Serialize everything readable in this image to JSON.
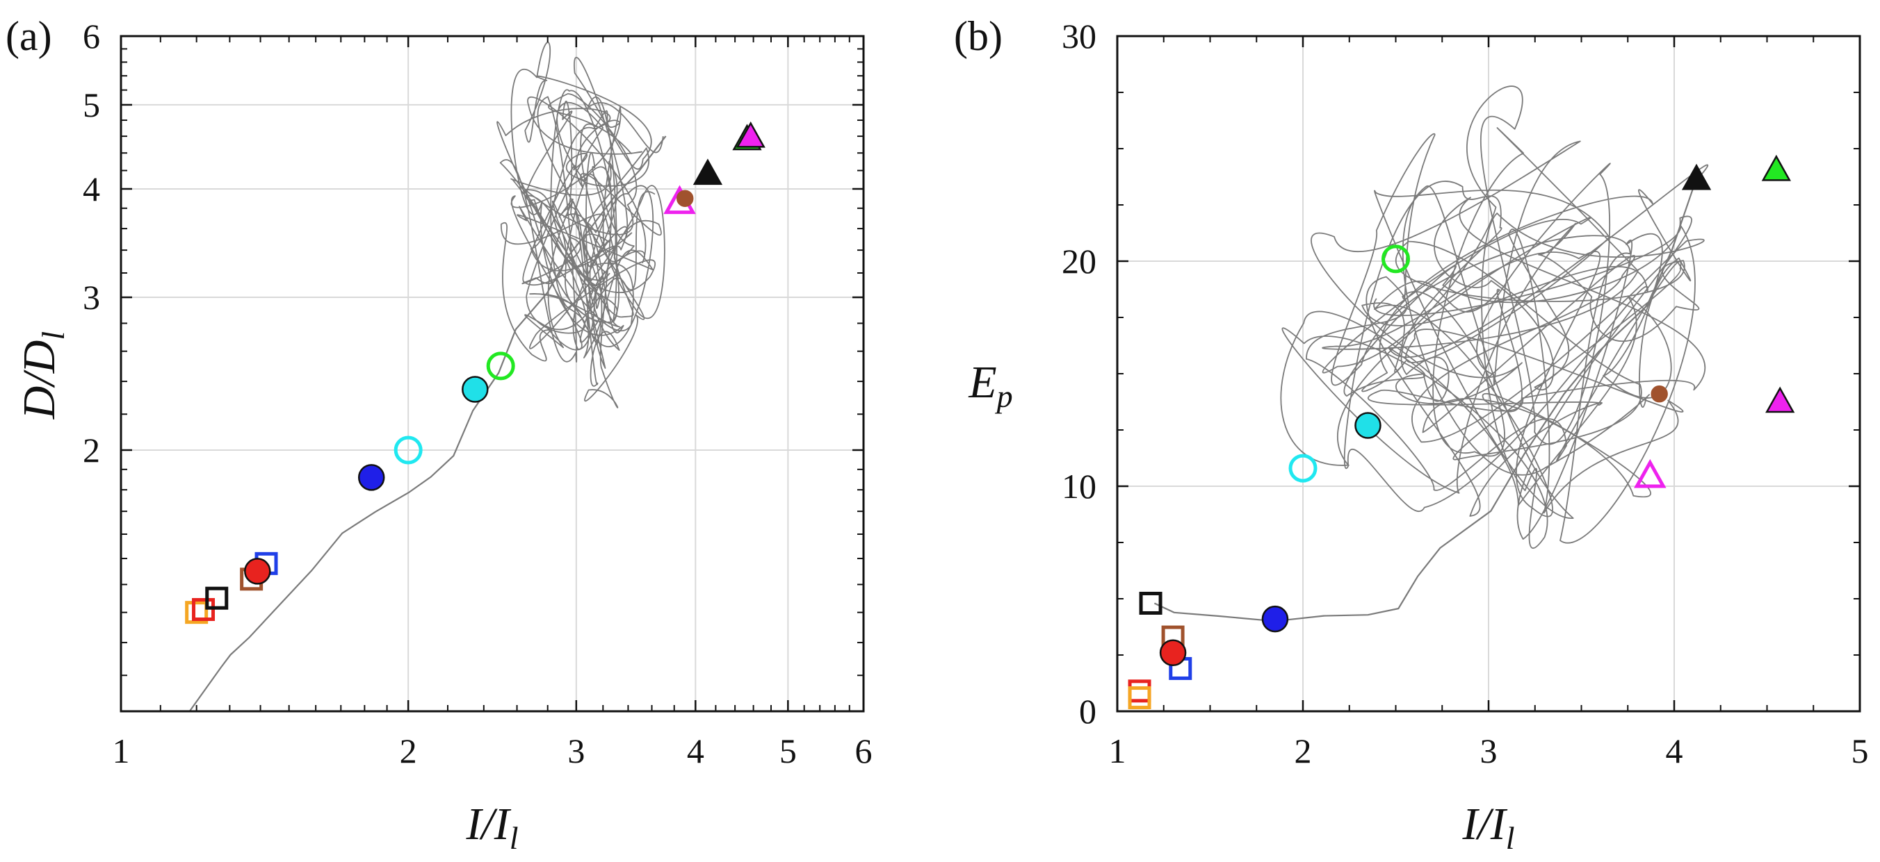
{
  "chart_data": [
    {
      "panel_label": "(a)",
      "type": "scatter",
      "x_scale": "log",
      "y_scale": "log",
      "xlim": [
        1,
        6
      ],
      "ylim": [
        1,
        6
      ],
      "xticks": [
        1,
        2,
        3,
        4,
        5,
        6
      ],
      "yticks": [
        2,
        3,
        4,
        5,
        6
      ],
      "xtick_labels": [
        "1",
        "2",
        "3",
        "4",
        "5",
        "6"
      ],
      "ytick_labels": [
        "2",
        "3",
        "4",
        "5",
        "6"
      ],
      "xlabel": {
        "main": "I/I",
        "sub": "l"
      },
      "ylabel": {
        "main": "D/D",
        "sub": "l"
      },
      "grid": true,
      "trajectory_color": "#7a7a7a",
      "trajectory_backbone": [
        [
          1.18,
          1.0
        ],
        [
          1.27,
          1.12
        ],
        [
          1.3,
          1.17
        ],
        [
          1.36,
          1.22
        ],
        [
          1.45,
          1.31
        ],
        [
          1.58,
          1.46
        ],
        [
          1.7,
          1.6
        ],
        [
          1.84,
          1.69
        ],
        [
          2.0,
          1.78
        ],
        [
          2.12,
          1.87
        ],
        [
          2.22,
          1.98
        ],
        [
          2.35,
          2.22
        ],
        [
          2.48,
          2.45
        ],
        [
          2.6,
          2.75
        ],
        [
          2.78,
          3.05
        ],
        [
          2.95,
          3.35
        ],
        [
          3.1,
          3.6
        ],
        [
          3.3,
          3.9
        ],
        [
          3.5,
          4.2
        ],
        [
          3.7,
          4.6
        ]
      ],
      "trajectory_loop_region": {
        "x": [
          2.2,
          4.1
        ],
        "y": [
          2.3,
          5.7
        ]
      },
      "points": [
        {
          "x": 1.2,
          "y": 1.3,
          "marker": "square",
          "fill": "none",
          "stroke": "#f5a623"
        },
        {
          "x": 1.22,
          "y": 1.31,
          "marker": "square",
          "fill": "none",
          "stroke": "#e8231f"
        },
        {
          "x": 1.26,
          "y": 1.35,
          "marker": "square",
          "fill": "none",
          "stroke": "#111111"
        },
        {
          "x": 1.37,
          "y": 1.42,
          "marker": "square",
          "fill": "none",
          "stroke": "#a0522d"
        },
        {
          "x": 1.42,
          "y": 1.48,
          "marker": "square",
          "fill": "none",
          "stroke": "#1f3fe8"
        },
        {
          "x": 1.39,
          "y": 1.45,
          "marker": "circle",
          "fill": "#e8231f",
          "stroke": "#111111"
        },
        {
          "x": 1.83,
          "y": 1.86,
          "marker": "circle",
          "fill": "#1f1fe8",
          "stroke": "#111111"
        },
        {
          "x": 2.0,
          "y": 2.0,
          "marker": "circle",
          "fill": "none",
          "stroke": "#20e8f0"
        },
        {
          "x": 2.35,
          "y": 2.35,
          "marker": "circle",
          "fill": "#20e0e8",
          "stroke": "#111111"
        },
        {
          "x": 2.5,
          "y": 2.5,
          "marker": "circle",
          "fill": "none",
          "stroke": "#22e822"
        },
        {
          "x": 3.85,
          "y": 3.85,
          "marker": "triangle",
          "fill": "none",
          "stroke": "#ee22ee"
        },
        {
          "x": 3.9,
          "y": 3.9,
          "marker": "circle",
          "fill": "#a0522d",
          "stroke": "#a0522d",
          "small": true
        },
        {
          "x": 4.12,
          "y": 4.15,
          "marker": "triangle",
          "fill": "#111111",
          "stroke": "#111111"
        },
        {
          "x": 4.53,
          "y": 4.55,
          "marker": "triangle",
          "fill": "#22e822",
          "stroke": "#111111"
        },
        {
          "x": 4.57,
          "y": 4.58,
          "marker": "triangle",
          "fill": "#ee22ee",
          "stroke": "#111111"
        }
      ]
    },
    {
      "panel_label": "(b)",
      "type": "scatter",
      "x_scale": "linear",
      "y_scale": "linear",
      "xlim": [
        1,
        5
      ],
      "ylim": [
        0,
        30
      ],
      "xticks": [
        1,
        2,
        3,
        4,
        5
      ],
      "yticks": [
        0,
        10,
        20,
        30
      ],
      "xtick_labels": [
        "1",
        "2",
        "3",
        "4",
        "5"
      ],
      "ytick_labels": [
        "0",
        "10",
        "20",
        "30"
      ],
      "xlabel": {
        "main": "I/I",
        "sub": "l"
      },
      "ylabel": {
        "main": "E",
        "sub": "p"
      },
      "grid": true,
      "trajectory_color": "#7a7a7a",
      "trajectory_backbone": [
        [
          1.2,
          4.8
        ],
        [
          1.3,
          4.5
        ],
        [
          1.55,
          4.2
        ],
        [
          1.85,
          4.1
        ],
        [
          2.1,
          4.3
        ],
        [
          2.35,
          4.2
        ],
        [
          2.5,
          4.6
        ],
        [
          2.62,
          6.0
        ],
        [
          2.75,
          7.3
        ],
        [
          3.0,
          9.0
        ],
        [
          3.2,
          11.5
        ],
        [
          3.4,
          14.0
        ],
        [
          3.6,
          16.0
        ],
        [
          3.85,
          18.0
        ],
        [
          4.0,
          20.5
        ],
        [
          4.12,
          23.6
        ]
      ],
      "trajectory_loop_region": {
        "x": [
          2.0,
          4.2
        ],
        "y": [
          7.0,
          26.5
        ]
      },
      "points": [
        {
          "x": 1.12,
          "y": 0.9,
          "marker": "square",
          "fill": "none",
          "stroke": "#e8231f"
        },
        {
          "x": 1.12,
          "y": 0.6,
          "marker": "square",
          "fill": "none",
          "stroke": "#f5a623"
        },
        {
          "x": 1.18,
          "y": 4.8,
          "marker": "square",
          "fill": "none",
          "stroke": "#111111"
        },
        {
          "x": 1.3,
          "y": 3.3,
          "marker": "square",
          "fill": "none",
          "stroke": "#a0522d"
        },
        {
          "x": 1.34,
          "y": 1.9,
          "marker": "square",
          "fill": "none",
          "stroke": "#1f3fe8"
        },
        {
          "x": 1.3,
          "y": 2.6,
          "marker": "circle",
          "fill": "#e8231f",
          "stroke": "#111111"
        },
        {
          "x": 1.85,
          "y": 4.1,
          "marker": "circle",
          "fill": "#1f1fe8",
          "stroke": "#111111"
        },
        {
          "x": 2.0,
          "y": 10.8,
          "marker": "circle",
          "fill": "none",
          "stroke": "#20e8f0"
        },
        {
          "x": 2.35,
          "y": 12.7,
          "marker": "circle",
          "fill": "#20e0e8",
          "stroke": "#111111"
        },
        {
          "x": 2.5,
          "y": 20.1,
          "marker": "circle",
          "fill": "none",
          "stroke": "#22e822"
        },
        {
          "x": 3.87,
          "y": 10.4,
          "marker": "triangle",
          "fill": "none",
          "stroke": "#ee22ee"
        },
        {
          "x": 3.92,
          "y": 14.1,
          "marker": "circle",
          "fill": "#a0522d",
          "stroke": "#a0522d",
          "small": true
        },
        {
          "x": 4.12,
          "y": 23.6,
          "marker": "triangle",
          "fill": "#111111",
          "stroke": "#111111"
        },
        {
          "x": 4.55,
          "y": 24.0,
          "marker": "triangle",
          "fill": "#22e822",
          "stroke": "#111111"
        },
        {
          "x": 4.57,
          "y": 13.7,
          "marker": "triangle",
          "fill": "#ee22ee",
          "stroke": "#111111"
        }
      ]
    }
  ]
}
